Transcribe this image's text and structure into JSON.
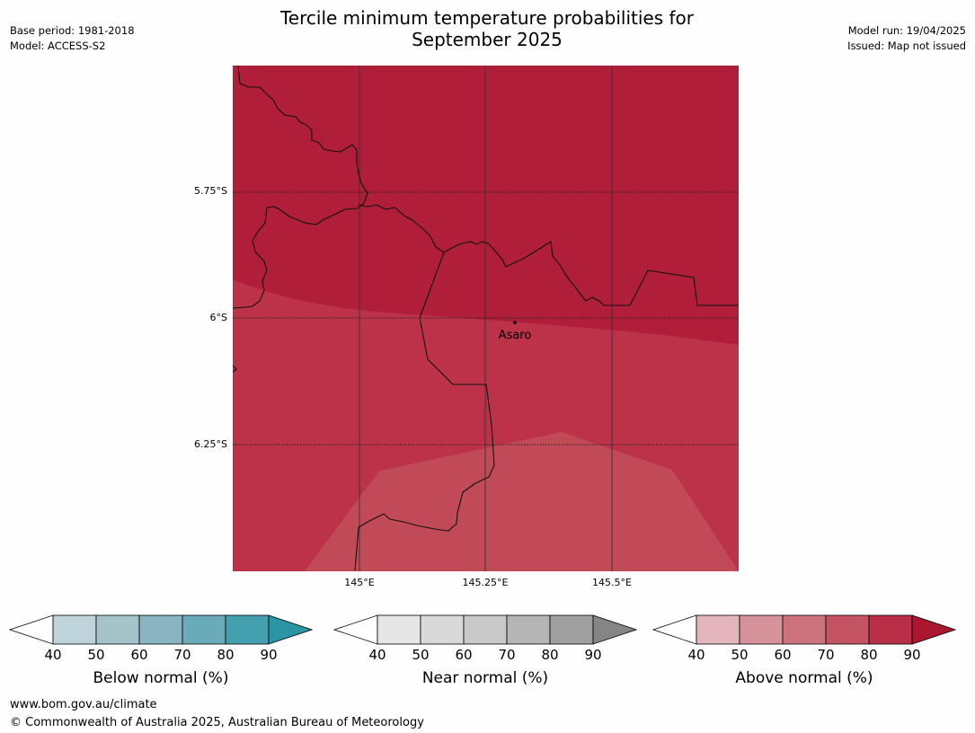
{
  "title_line1": "Tercile minimum temperature probabilities for",
  "title_line2": "September 2025",
  "meta": {
    "base_period": "Base period: 1981-2018",
    "model": "Model: ACCESS-S2",
    "model_run": "Model run: 19/04/2025",
    "issued": "Issued: Map not issued"
  },
  "map": {
    "lat_labels": [
      "5.75°S",
      "6°S",
      "6.25°S"
    ],
    "lon_labels": [
      "145°E",
      "145.25°E",
      "145.5°E"
    ],
    "place": "Asaro",
    "colors": {
      "band_90": "#b01e39",
      "band_80": "#bc3249",
      "band_70": "#c14a57"
    }
  },
  "colorbars": [
    {
      "name": "below",
      "title": "Below normal (%)",
      "ticks": [
        "40",
        "50",
        "60",
        "70",
        "80",
        "90"
      ],
      "colors": [
        "#ffffff",
        "#bed4da",
        "#a5c4ca",
        "#88b5c1",
        "#6aabb9",
        "#44a0ae",
        "#2b94a5"
      ]
    },
    {
      "name": "near",
      "title": "Near normal (%)",
      "ticks": [
        "40",
        "50",
        "60",
        "70",
        "80",
        "90"
      ],
      "colors": [
        "#ffffff",
        "#e6e6e6",
        "#d9d9d9",
        "#c9c9c9",
        "#b5b5b5",
        "#9f9f9f",
        "#858585"
      ]
    },
    {
      "name": "above",
      "title": "Above normal (%)",
      "ticks": [
        "40",
        "50",
        "60",
        "70",
        "80",
        "90"
      ],
      "colors": [
        "#ffffff",
        "#e2b6bc",
        "#d6939c",
        "#cc737d",
        "#c45463",
        "#b92f47",
        "#ac1730"
      ]
    }
  ],
  "footer": {
    "url": "www.bom.gov.au/climate",
    "copyright": "© Commonwealth of Australia 2025, Australian Bureau of Meteorology"
  }
}
